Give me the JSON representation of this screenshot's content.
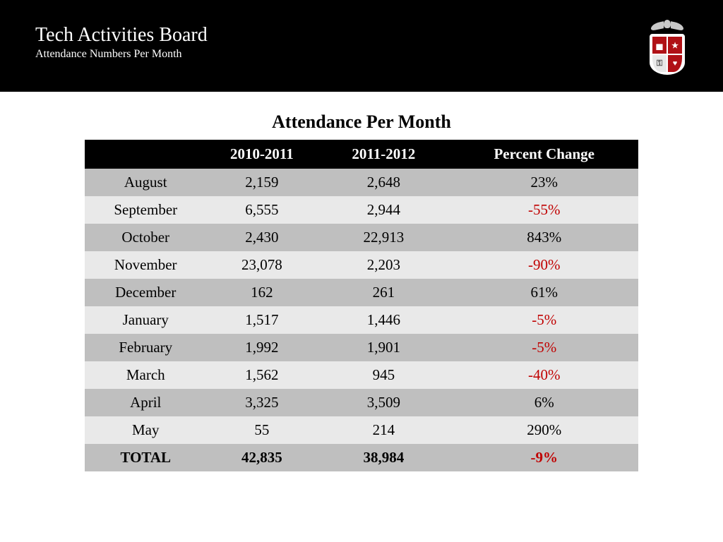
{
  "header": {
    "title": "Tech Activities Board",
    "subtitle": "Attendance Numbers Per Month"
  },
  "colors": {
    "header_bg": "#000000",
    "header_fg": "#ffffff",
    "thead_bg": "#000000",
    "thead_fg": "#ffffff",
    "row_dark": "#bfbfbf",
    "row_light": "#e9e9e9",
    "negative": "#c00000",
    "page_bg": "#ffffff",
    "shield_accent": "#b01116"
  },
  "typography": {
    "family": "Times New Roman",
    "header_title_size": 28,
    "header_subtitle_size": 16,
    "table_title_size": 26,
    "cell_size": 21
  },
  "table": {
    "title": "Attendance Per Month",
    "columns": [
      "",
      "2010-2011",
      "2011-2012",
      "Percent Change"
    ],
    "col_widths_pct": [
      22,
      20,
      24,
      34
    ],
    "rows": [
      {
        "month": "August",
        "y1": "2,159",
        "y2": "2,648",
        "pct": "23%",
        "neg": false,
        "shade": "dark"
      },
      {
        "month": "September",
        "y1": "6,555",
        "y2": "2,944",
        "pct": "-55%",
        "neg": true,
        "shade": "light"
      },
      {
        "month": "October",
        "y1": "2,430",
        "y2": "22,913",
        "pct": "843%",
        "neg": false,
        "shade": "dark"
      },
      {
        "month": "November",
        "y1": "23,078",
        "y2": "2,203",
        "pct": "-90%",
        "neg": true,
        "shade": "light"
      },
      {
        "month": "December",
        "y1": "162",
        "y2": "261",
        "pct": "61%",
        "neg": false,
        "shade": "dark"
      },
      {
        "month": "January",
        "y1": "1,517",
        "y2": "1,446",
        "pct": "-5%",
        "neg": true,
        "shade": "light"
      },
      {
        "month": "February",
        "y1": "1,992",
        "y2": "1,901",
        "pct": "-5%",
        "neg": true,
        "shade": "dark"
      },
      {
        "month": "March",
        "y1": "1,562",
        "y2": "945",
        "pct": "-40%",
        "neg": true,
        "shade": "light"
      },
      {
        "month": "April",
        "y1": "3,325",
        "y2": "3,509",
        "pct": "6%",
        "neg": false,
        "shade": "dark"
      },
      {
        "month": "May",
        "y1": "55",
        "y2": "214",
        "pct": "290%",
        "neg": false,
        "shade": "light"
      }
    ],
    "total": {
      "label": "TOTAL",
      "y1": "42,835",
      "y2": "38,984",
      "pct": "-9%",
      "neg": true,
      "shade": "dark"
    }
  }
}
